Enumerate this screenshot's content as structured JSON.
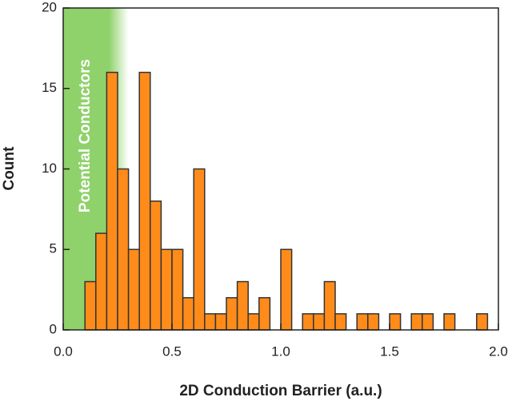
{
  "chart_data": {
    "type": "histogram",
    "x_label": "2D Conduction Barrier (a.u.)",
    "y_label": "Count",
    "annotation": "Potential Conductors",
    "shaded_region": [
      0,
      0.3
    ],
    "shaded_color": "#8fd16a",
    "bins": [
      0.1,
      0.15,
      0.2,
      0.25,
      0.3,
      0.35,
      0.4,
      0.45,
      0.5,
      0.55,
      0.6,
      0.65,
      0.7,
      0.75,
      0.8,
      0.85,
      0.9,
      0.95,
      1.0,
      1.05,
      1.1,
      1.15,
      1.2,
      1.25,
      1.3,
      1.35,
      1.4,
      1.45,
      1.5,
      1.55,
      1.6,
      1.65,
      1.7,
      1.75,
      1.8,
      1.85,
      1.9,
      1.95
    ],
    "values": [
      3,
      6,
      16,
      10,
      5,
      16,
      8,
      5,
      5,
      2,
      10,
      1,
      1,
      2,
      3,
      1,
      2,
      0,
      5,
      0,
      1,
      1,
      3,
      1,
      0,
      1,
      1,
      0,
      1,
      0,
      1,
      1,
      0,
      1,
      0,
      0,
      1
    ],
    "color": "#ff8c1a",
    "xlim": [
      0,
      2
    ],
    "ylim": [
      0,
      20
    ],
    "xticks": [
      {
        "value": 0,
        "label": "0.0"
      },
      0.5,
      {
        "value": 1,
        "label": "1.0"
      },
      1.5,
      {
        "value": 2,
        "label": "2.0"
      }
    ],
    "yticks": [
      0,
      5,
      10,
      15,
      20
    ]
  }
}
